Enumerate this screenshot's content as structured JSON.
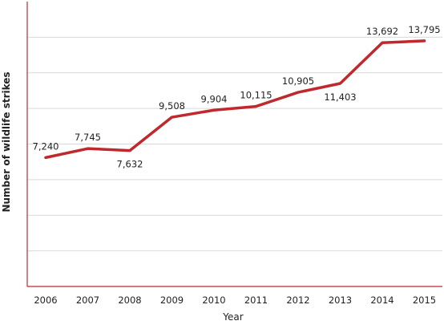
{
  "chart_data": {
    "type": "line",
    "title": "",
    "xlabel": "Year",
    "ylabel": "Number of wildlife strikes",
    "categories": [
      "2006",
      "2007",
      "2008",
      "2009",
      "2010",
      "2011",
      "2012",
      "2013",
      "2014",
      "2015"
    ],
    "series": [
      {
        "values": [
          7240,
          7745,
          7632,
          9508,
          9904,
          10115,
          10905,
          11403,
          13692,
          13795
        ],
        "data_labels": [
          "7,240",
          "7,745",
          "7,632",
          "9,508",
          "9,904",
          "10,115",
          "10,905",
          "11,403",
          "13,692",
          "13,795"
        ]
      }
    ],
    "ylim": [
      0,
      16000
    ],
    "y_gridline_step": 2000,
    "grid": "horizontal",
    "y_tick_labels_shown": false,
    "legend": "none",
    "colors": {
      "line": "#c0282d",
      "axis": "#c0282d",
      "grid": "#d9d9d9",
      "text": "#222222"
    }
  }
}
